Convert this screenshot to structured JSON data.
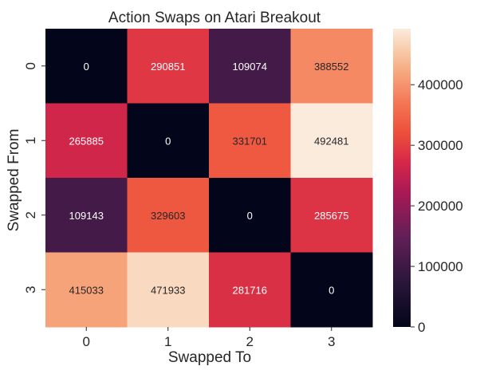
{
  "chart_data": {
    "type": "heatmap",
    "title": "Action Swaps on Atari Breakout",
    "xlabel": "Swapped To",
    "ylabel": "Swapped From",
    "x_categories": [
      "0",
      "1",
      "2",
      "3"
    ],
    "y_categories": [
      "0",
      "1",
      "2",
      "3"
    ],
    "values": [
      [
        0,
        290851,
        109074,
        388552
      ],
      [
        265885,
        0,
        331701,
        492481
      ],
      [
        109143,
        329603,
        0,
        285675
      ],
      [
        415033,
        471933,
        281716,
        0
      ]
    ],
    "colorbar": {
      "range": [
        0,
        492481
      ],
      "ticks": [
        0,
        100000,
        200000,
        300000,
        400000
      ],
      "tick_labels": [
        "0",
        "100000",
        "200000",
        "300000",
        "400000"
      ],
      "colormap": "rocket"
    },
    "cell_text_colors": {
      "dark_cells": "#ffffff",
      "light_cells": "#262626"
    },
    "grid": false,
    "legend": "colorbar-right"
  }
}
